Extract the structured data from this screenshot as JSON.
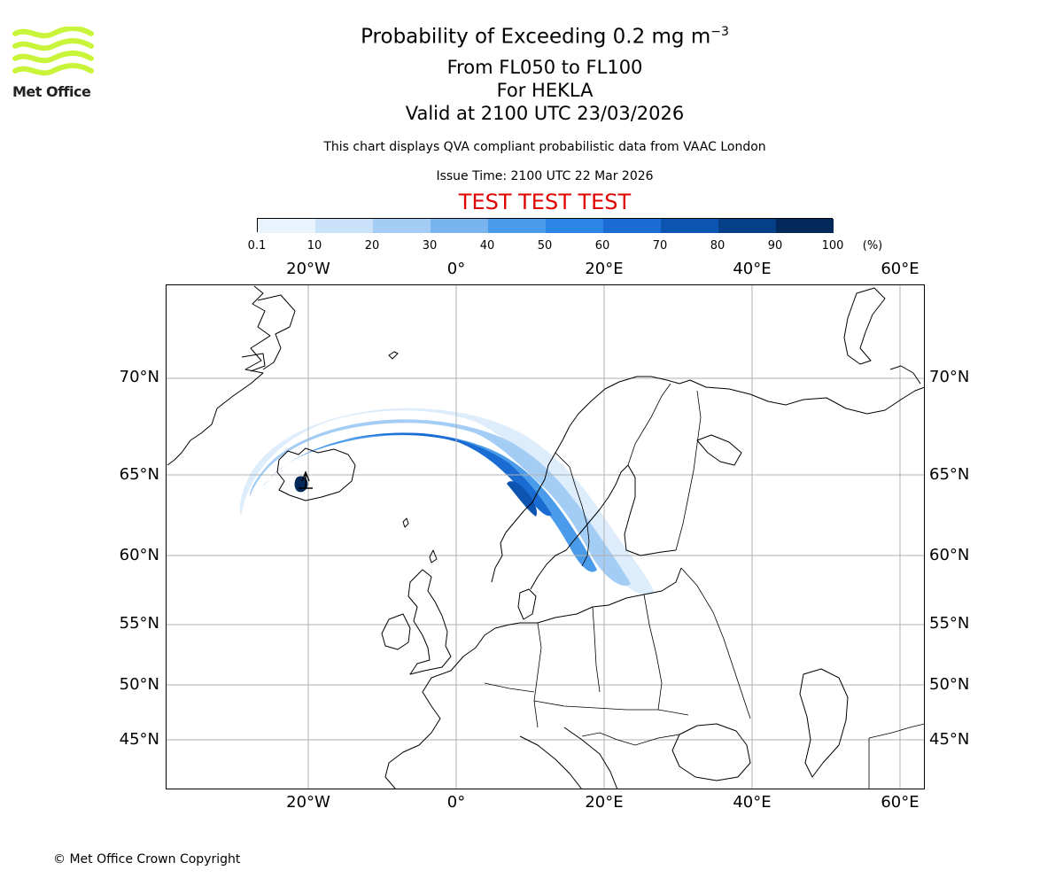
{
  "logo": {
    "text": "Met Office"
  },
  "header": {
    "title_main": "Probability of Exceeding 0.2 mg m",
    "title_sup": "−3",
    "level_range": "From FL050 to FL100",
    "volcano": "For HEKLA",
    "valid_time": "Valid at 2100 UTC 23/03/2026",
    "description": "This chart displays QVA compliant probabilistic data from VAAC London",
    "issue_time": "Issue Time: 2100 UTC 22 Mar 2026",
    "test_banner": "TEST TEST TEST"
  },
  "colorbar": {
    "ticks": [
      "0.1",
      "10",
      "20",
      "30",
      "40",
      "50",
      "60",
      "70",
      "80",
      "90",
      "100"
    ],
    "unit": "(%)",
    "colors": [
      "#e8f3fd",
      "#c9e2f9",
      "#a3cdf5",
      "#78b5f0",
      "#4a9bea",
      "#2a85e4",
      "#1a6cd2",
      "#0b55b0",
      "#053f88",
      "#02295a"
    ]
  },
  "axes": {
    "lon_labels": [
      "20°W",
      "0°",
      "20°E",
      "40°E",
      "60°E"
    ],
    "lat_labels": [
      "70°N",
      "65°N",
      "60°N",
      "55°N",
      "50°N",
      "45°N"
    ]
  },
  "footer": {
    "copyright": "© Met Office Crown Copyright"
  },
  "colors": {
    "test_red": "#e00000",
    "logo_green": "#c8f53a",
    "grid": "#b0b0b0"
  }
}
